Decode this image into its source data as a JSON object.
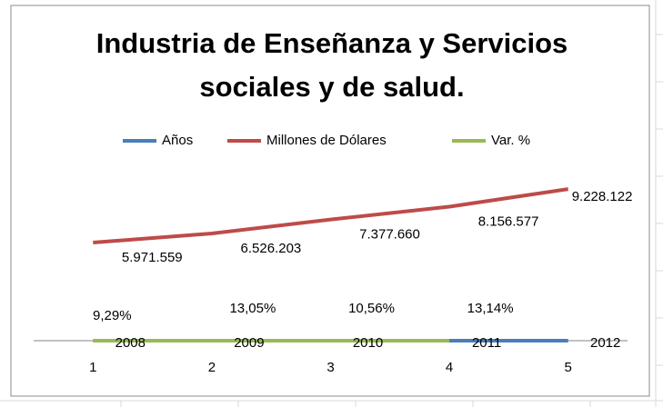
{
  "chart_data": {
    "type": "line",
    "title": [
      "Industria de Enseñanza y Servicios",
      "sociales  y de salud."
    ],
    "categories": [
      "1",
      "2",
      "3",
      "4",
      "5"
    ],
    "series": [
      {
        "name": "Años",
        "color": "#4a7ebb",
        "values": [
          2008,
          2009,
          2010,
          2011,
          2012
        ],
        "value_labels": [
          "2008",
          "2009",
          "2010",
          "2011",
          "2012"
        ]
      },
      {
        "name": "Millones de Dólares",
        "color": "#be4b48",
        "values": [
          5971559,
          6526203,
          7377660,
          8156577,
          9228122
        ],
        "value_labels": [
          "5.971.559",
          "6.526.203",
          "7.377.660",
          "8.156.577",
          "9.228.122"
        ]
      },
      {
        "name": "Var. %",
        "color": "#98b954",
        "values": [
          9.29,
          13.05,
          10.56,
          13.14,
          null
        ],
        "value_labels": [
          "9,29%",
          "13,05%",
          "10,56%",
          "13,14%",
          null
        ]
      }
    ],
    "ylim": [
      0,
      12000000
    ],
    "legend": "top"
  }
}
